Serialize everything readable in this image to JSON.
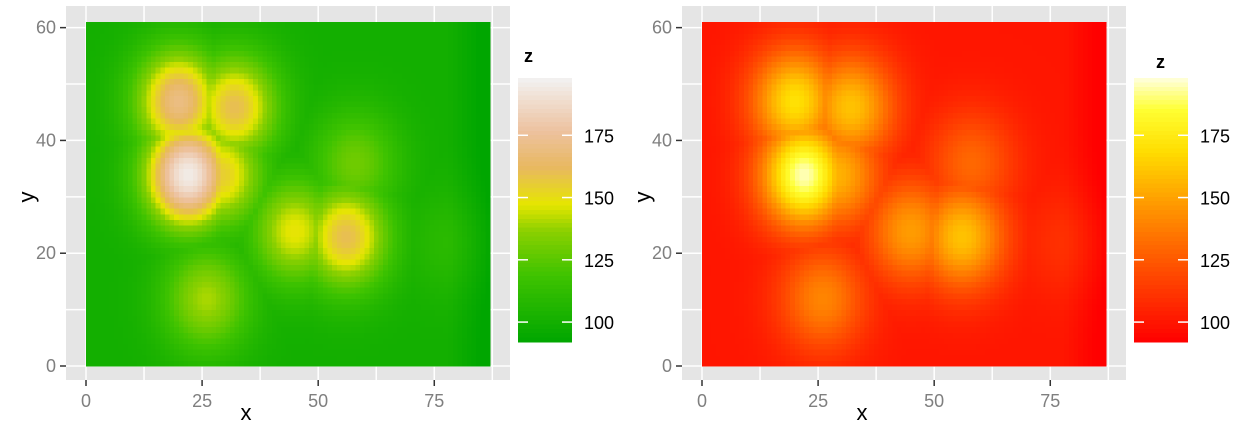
{
  "chart_data": [
    {
      "type": "heatmap",
      "title": "",
      "xlabel": "x",
      "ylabel": "y",
      "xlim": [
        0,
        87
      ],
      "ylim": [
        0,
        61
      ],
      "x_ticks": [
        0,
        25,
        50,
        75
      ],
      "y_ticks": [
        0,
        20,
        40,
        60
      ],
      "x_tick_labels": [
        "0",
        "25",
        "50",
        "75"
      ],
      "y_tick_labels": [
        "0",
        "20",
        "40",
        "60"
      ],
      "grid": true,
      "background": "#e5e5e5",
      "legend": {
        "title": "z",
        "position": "right",
        "range": [
          92,
          198
        ],
        "ticks": [
          100,
          125,
          150,
          175
        ],
        "tick_labels": [
          "100",
          "125",
          "150",
          "175"
        ]
      },
      "colorscale": [
        [
          0.0,
          "#00a600"
        ],
        [
          0.25,
          "#3ec300"
        ],
        [
          0.42,
          "#8bd000"
        ],
        [
          0.52,
          "#e6e600"
        ],
        [
          0.66,
          "#e8b860"
        ],
        [
          0.8,
          "#edc2a0"
        ],
        [
          1.0,
          "#f2f2f2"
        ]
      ],
      "surface_peaks": [
        {
          "x": 22,
          "y": 34,
          "height": 195
        },
        {
          "x": 29,
          "y": 34,
          "height": 155
        },
        {
          "x": 56,
          "y": 23,
          "height": 160
        },
        {
          "x": 45,
          "y": 24,
          "height": 148
        },
        {
          "x": 20,
          "y": 47,
          "height": 170
        },
        {
          "x": 32,
          "y": 46,
          "height": 160
        },
        {
          "x": 26,
          "y": 12,
          "height": 140
        },
        {
          "x": 58,
          "y": 36,
          "height": 130
        },
        {
          "x": 78,
          "y": 22,
          "height": 110
        }
      ]
    },
    {
      "type": "heatmap",
      "title": "",
      "xlabel": "x",
      "ylabel": "y",
      "xlim": [
        0,
        87
      ],
      "ylim": [
        0,
        61
      ],
      "x_ticks": [
        0,
        25,
        50,
        75
      ],
      "y_ticks": [
        0,
        20,
        40,
        60
      ],
      "x_tick_labels": [
        "0",
        "25",
        "50",
        "75"
      ],
      "y_tick_labels": [
        "0",
        "20",
        "40",
        "60"
      ],
      "grid": true,
      "background": "#e5e5e5",
      "legend": {
        "title": "z",
        "position": "right",
        "range": [
          92,
          198
        ],
        "ticks": [
          100,
          125,
          150,
          175
        ],
        "tick_labels": [
          "100",
          "125",
          "150",
          "175"
        ]
      },
      "colorscale": [
        [
          0.0,
          "#ff0000"
        ],
        [
          0.3,
          "#ff5500"
        ],
        [
          0.52,
          "#ff9900"
        ],
        [
          0.72,
          "#ffdd00"
        ],
        [
          0.88,
          "#ffff33"
        ],
        [
          1.0,
          "#ffffe0"
        ]
      ],
      "surface_peaks": [
        {
          "x": 22,
          "y": 34,
          "height": 195
        },
        {
          "x": 29,
          "y": 34,
          "height": 155
        },
        {
          "x": 56,
          "y": 23,
          "height": 160
        },
        {
          "x": 45,
          "y": 24,
          "height": 148
        },
        {
          "x": 20,
          "y": 47,
          "height": 170
        },
        {
          "x": 32,
          "y": 46,
          "height": 160
        },
        {
          "x": 26,
          "y": 12,
          "height": 140
        },
        {
          "x": 58,
          "y": 36,
          "height": 130
        },
        {
          "x": 78,
          "y": 22,
          "height": 110
        }
      ]
    }
  ]
}
